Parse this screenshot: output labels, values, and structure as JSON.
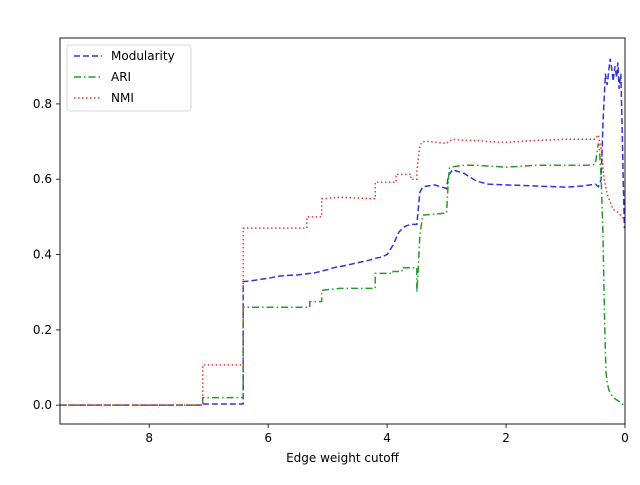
{
  "chart_data": {
    "type": "line",
    "title": "",
    "xlabel": "Edge weight cutoff",
    "ylabel": "",
    "xlim": [
      9.5,
      0
    ],
    "ylim": [
      -0.05,
      0.975
    ],
    "x_inverted": true,
    "xticks": [
      8,
      6,
      4,
      2,
      0
    ],
    "yticks": [
      0.0,
      0.2,
      0.4,
      0.6,
      0.8
    ],
    "xtick_labels": [
      "8",
      "6",
      "4",
      "2",
      "0"
    ],
    "ytick_labels": [
      "0.0",
      "0.2",
      "0.4",
      "0.6",
      "0.8"
    ],
    "grid": false,
    "legend_position": "top-left",
    "series": [
      {
        "name": "Modularity",
        "color": "#3333dd",
        "dash": "dashed",
        "x": [
          9.5,
          7.1,
          7.1,
          6.42,
          6.42,
          6.3,
          6.0,
          5.8,
          5.5,
          5.2,
          5.0,
          4.9,
          4.7,
          4.5,
          4.3,
          4.2,
          4.1,
          4.0,
          3.9,
          3.8,
          3.7,
          3.6,
          3.5,
          3.45,
          3.4,
          3.2,
          3.0,
          2.97,
          2.9,
          2.7,
          2.5,
          2.3,
          2.0,
          1.5,
          1.0,
          0.7,
          0.5,
          0.45,
          0.4,
          0.37,
          0.33,
          0.3,
          0.25,
          0.22,
          0.2,
          0.17,
          0.14,
          0.12,
          0.1,
          0.07,
          0.05,
          0.03,
          0.01
        ],
        "y": [
          0.0,
          0.0,
          0.003,
          0.003,
          0.328,
          0.33,
          0.337,
          0.343,
          0.346,
          0.352,
          0.36,
          0.365,
          0.371,
          0.378,
          0.385,
          0.39,
          0.393,
          0.4,
          0.425,
          0.46,
          0.475,
          0.48,
          0.48,
          0.565,
          0.58,
          0.585,
          0.575,
          0.61,
          0.625,
          0.615,
          0.595,
          0.587,
          0.585,
          0.582,
          0.579,
          0.582,
          0.587,
          0.58,
          0.6,
          0.75,
          0.88,
          0.85,
          0.92,
          0.89,
          0.86,
          0.9,
          0.87,
          0.91,
          0.84,
          0.88,
          0.75,
          0.6,
          0.47
        ]
      },
      {
        "name": "ARI",
        "color": "#2a9a2a",
        "dash": "dashdot",
        "x": [
          9.5,
          7.1,
          7.1,
          6.42,
          6.42,
          5.3,
          5.3,
          5.1,
          5.1,
          4.8,
          4.8,
          4.2,
          4.2,
          3.9,
          3.9,
          3.75,
          3.75,
          3.5,
          3.5,
          3.48,
          3.45,
          3.4,
          3.38,
          3.0,
          2.97,
          2.95,
          2.9,
          2.7,
          2.5,
          2.0,
          1.5,
          1.0,
          0.6,
          0.5,
          0.47,
          0.45,
          0.43,
          0.4,
          0.37,
          0.34,
          0.32,
          0.3,
          0.27,
          0.2,
          0.1,
          0.05,
          0.0
        ],
        "y": [
          0.0,
          0.0,
          0.02,
          0.02,
          0.26,
          0.26,
          0.275,
          0.275,
          0.305,
          0.31,
          0.31,
          0.31,
          0.35,
          0.35,
          0.355,
          0.355,
          0.365,
          0.365,
          0.3,
          0.35,
          0.45,
          0.505,
          0.505,
          0.51,
          0.6,
          0.63,
          0.633,
          0.637,
          0.637,
          0.632,
          0.637,
          0.637,
          0.637,
          0.64,
          0.67,
          0.695,
          0.68,
          0.6,
          0.45,
          0.2,
          0.09,
          0.06,
          0.04,
          0.02,
          0.01,
          0.003,
          0.0
        ]
      },
      {
        "name": "NMI",
        "color": "#ee3333",
        "dash": "dotted",
        "x": [
          9.5,
          7.1,
          7.1,
          6.42,
          6.42,
          5.35,
          5.35,
          5.1,
          5.1,
          4.8,
          4.8,
          4.2,
          4.2,
          3.85,
          3.85,
          3.6,
          3.6,
          3.5,
          3.5,
          3.45,
          3.4,
          3.3,
          3.0,
          2.97,
          2.9,
          2.7,
          2.5,
          2.3,
          2.0,
          1.5,
          1.0,
          0.7,
          0.5,
          0.45,
          0.4,
          0.35,
          0.3,
          0.25,
          0.2,
          0.1,
          0.05,
          0.0
        ],
        "y": [
          0.0,
          0.0,
          0.107,
          0.107,
          0.47,
          0.47,
          0.5,
          0.5,
          0.548,
          0.552,
          0.552,
          0.548,
          0.592,
          0.592,
          0.613,
          0.613,
          0.6,
          0.6,
          0.62,
          0.69,
          0.7,
          0.7,
          0.695,
          0.7,
          0.706,
          0.703,
          0.703,
          0.7,
          0.698,
          0.703,
          0.706,
          0.706,
          0.706,
          0.718,
          0.68,
          0.6,
          0.56,
          0.54,
          0.52,
          0.51,
          0.5,
          0.49
        ]
      }
    ]
  }
}
